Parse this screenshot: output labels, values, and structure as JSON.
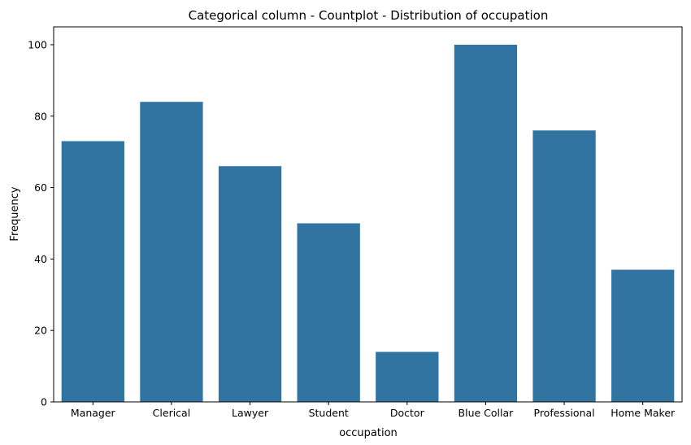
{
  "chart_data": {
    "type": "bar",
    "title": "Categorical column - Countplot - Distribution of occupation",
    "xlabel": "occupation",
    "ylabel": "Frequency",
    "categories": [
      "Manager",
      "Clerical",
      "Lawyer",
      "Student",
      "Doctor",
      "Blue Collar",
      "Professional",
      "Home Maker"
    ],
    "values": [
      73,
      84,
      66,
      50,
      14,
      100,
      76,
      37
    ],
    "ylim": [
      0,
      105
    ],
    "yticks": [
      0,
      20,
      40,
      60,
      80,
      100
    ],
    "grid": false,
    "bar_color": "#3274a1"
  }
}
